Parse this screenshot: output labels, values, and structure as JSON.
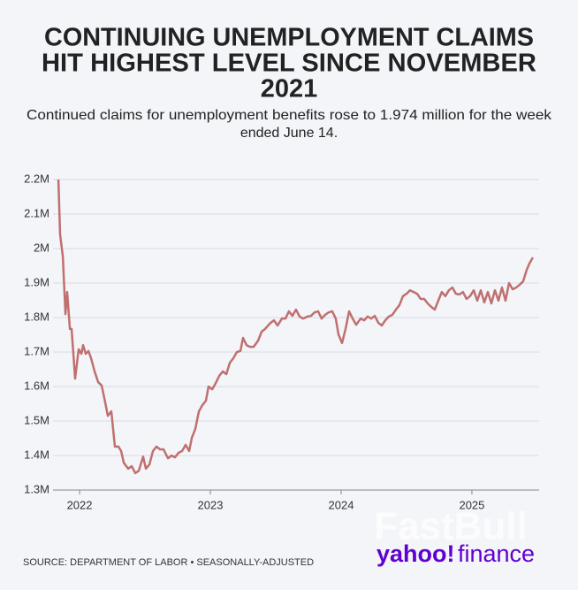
{
  "chart_data": {
    "type": "line",
    "title": [
      "CONTINUING UNEMPLOYMENT CLAIMS",
      "HIT HIGHEST LEVEL SINCE NOVEMBER",
      "2021"
    ],
    "subtitle": [
      "Continued claims for unemployment benefits rose to 1.974 million for the week",
      "ended June 14."
    ],
    "source": "SOURCE: DEPARTMENT OF LABOR • SEASONALLY-ADJUSTED",
    "logo": [
      "yahoo!",
      "finance"
    ],
    "watermark": "FastBull",
    "color": "#c0706e",
    "grid": true,
    "xlim": [
      2021.797,
      2025.514
    ],
    "xticks": [
      2022,
      2023,
      2024,
      2025
    ],
    "ylim": [
      1300000,
      2200000
    ],
    "yticks": [
      {
        "value": 1300000,
        "label": "1.3M"
      },
      {
        "value": 1400000,
        "label": "1.4M"
      },
      {
        "value": 1500000,
        "label": "1.5M"
      },
      {
        "value": 1600000,
        "label": "1.6M"
      },
      {
        "value": 1700000,
        "label": "1.7M"
      },
      {
        "value": 1800000,
        "label": "1.8M"
      },
      {
        "value": 1900000,
        "label": "1.9M"
      },
      {
        "value": 2000000,
        "label": "2M"
      },
      {
        "value": 2100000,
        "label": "2.1M"
      },
      {
        "value": 2200000,
        "label": "2.2M"
      }
    ],
    "x": [
      2021.838,
      2021.851,
      2021.872,
      2021.892,
      2021.905,
      2021.926,
      2021.939,
      2021.966,
      2021.993,
      2022.014,
      2022.027,
      2022.047,
      2022.068,
      2022.088,
      2022.115,
      2022.142,
      2022.169,
      2022.196,
      2022.216,
      2022.243,
      2022.27,
      2022.297,
      2022.318,
      2022.338,
      2022.372,
      2022.399,
      2022.426,
      2022.453,
      2022.486,
      2022.507,
      2022.534,
      2022.561,
      2022.588,
      2022.615,
      2022.642,
      2022.676,
      2022.703,
      2022.73,
      2022.757,
      2022.784,
      2022.811,
      2022.838,
      2022.858,
      2022.885,
      2022.912,
      2022.939,
      2022.966,
      2022.986,
      2023.014,
      2023.041,
      2023.068,
      2023.095,
      2023.122,
      2023.149,
      2023.176,
      2023.203,
      2023.23,
      2023.25,
      2023.277,
      2023.304,
      2023.331,
      2023.365,
      2023.392,
      2023.419,
      2023.453,
      2023.486,
      2023.514,
      2023.547,
      2023.574,
      2023.601,
      2023.628,
      2023.655,
      2023.682,
      2023.709,
      2023.743,
      2023.77,
      2023.797,
      2023.824,
      2023.851,
      2023.878,
      2023.905,
      2023.932,
      2023.959,
      2023.98,
      2024.007,
      2024.034,
      2024.061,
      2024.088,
      2024.115,
      2024.149,
      2024.176,
      2024.203,
      2024.23,
      2024.257,
      2024.284,
      2024.311,
      2024.338,
      2024.365,
      2024.392,
      2024.419,
      2024.446,
      2024.473,
      2024.5,
      2024.527,
      2024.554,
      2024.581,
      2024.608,
      2024.635,
      2024.662,
      2024.689,
      2024.716,
      2024.743,
      2024.77,
      2024.797,
      2024.824,
      2024.851,
      2024.878,
      2024.905,
      2024.932,
      2024.959,
      2024.986,
      2025.014,
      2025.041,
      2025.068,
      2025.095,
      2025.122,
      2025.149,
      2025.176,
      2025.203,
      2025.23,
      2025.257,
      2025.284,
      2025.311,
      2025.338,
      2025.365,
      2025.392,
      2025.419,
      2025.439,
      2025.466
    ],
    "values": [
      2200000,
      2041000,
      1977000,
      1810000,
      1874000,
      1767000,
      1767000,
      1623000,
      1708000,
      1695000,
      1720000,
      1695000,
      1703000,
      1682000,
      1644000,
      1613000,
      1603000,
      1554000,
      1515000,
      1528000,
      1426000,
      1426000,
      1413000,
      1379000,
      1362000,
      1369000,
      1349000,
      1356000,
      1397000,
      1362000,
      1374000,
      1413000,
      1426000,
      1418000,
      1418000,
      1392000,
      1400000,
      1395000,
      1408000,
      1413000,
      1431000,
      1413000,
      1451000,
      1477000,
      1528000,
      1546000,
      1559000,
      1600000,
      1592000,
      1610000,
      1631000,
      1644000,
      1636000,
      1669000,
      1682000,
      1700000,
      1703000,
      1741000,
      1720000,
      1715000,
      1715000,
      1733000,
      1759000,
      1767000,
      1782000,
      1792000,
      1777000,
      1797000,
      1797000,
      1818000,
      1805000,
      1823000,
      1803000,
      1797000,
      1803000,
      1805000,
      1815000,
      1818000,
      1797000,
      1808000,
      1815000,
      1818000,
      1797000,
      1751000,
      1726000,
      1767000,
      1818000,
      1797000,
      1779000,
      1797000,
      1792000,
      1803000,
      1797000,
      1805000,
      1785000,
      1777000,
      1792000,
      1803000,
      1808000,
      1823000,
      1836000,
      1862000,
      1869000,
      1879000,
      1874000,
      1869000,
      1854000,
      1854000,
      1841000,
      1831000,
      1823000,
      1849000,
      1874000,
      1862000,
      1879000,
      1887000,
      1869000,
      1867000,
      1874000,
      1854000,
      1862000,
      1879000,
      1849000,
      1879000,
      1844000,
      1874000,
      1841000,
      1879000,
      1849000,
      1887000,
      1849000,
      1900000,
      1882000,
      1887000,
      1895000,
      1905000,
      1938000,
      1956000,
      1974000
    ]
  }
}
